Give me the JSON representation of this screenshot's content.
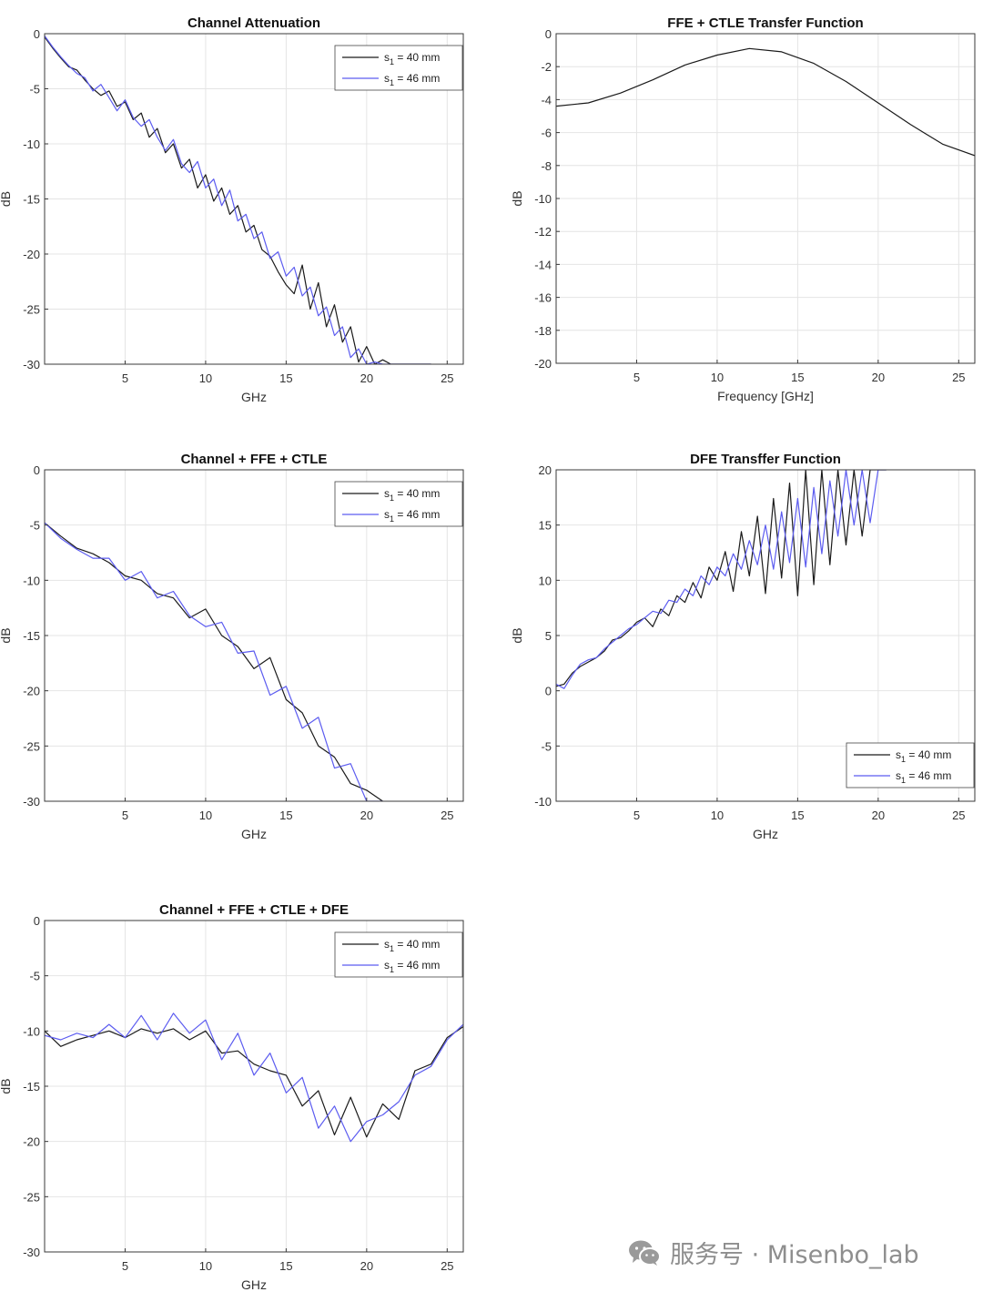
{
  "colors": {
    "s1_40": "#1a1a1a",
    "s1_46": "#5c5cf0",
    "grid": "#e4e4e4",
    "axis": "#3a3a3a"
  },
  "watermark": {
    "icon": "wechat-icon",
    "text": "服务号 · Misenbo_lab"
  },
  "chart_data": [
    {
      "id": "channel-attenuation",
      "type": "line",
      "title": "Channel Attenuation",
      "xlabel": "GHz",
      "ylabel": "dB",
      "xlim": [
        0,
        26
      ],
      "ylim": [
        -30,
        0
      ],
      "xticks": [
        5,
        10,
        15,
        20,
        25
      ],
      "yticks": [
        0,
        -5,
        -10,
        -15,
        -20,
        -25,
        -30
      ],
      "grid": true,
      "legend": "top-right",
      "series": [
        {
          "name": "s1 = 40 mm",
          "x": [
            0.0,
            0.5,
            1.0,
            1.5,
            2.0,
            2.5,
            3.0,
            3.5,
            4.0,
            4.5,
            5.0,
            5.5,
            6.0,
            6.5,
            7.0,
            7.5,
            8.0,
            8.5,
            9.0,
            9.5,
            10.0,
            10.5,
            11.0,
            11.5,
            12.0,
            12.5,
            13.0,
            13.5,
            14.0,
            14.5,
            15.0,
            15.5,
            16.0,
            16.5,
            17.0,
            17.5,
            18.0,
            18.5,
            19.0,
            19.5,
            20.0,
            20.5,
            21.0,
            21.5,
            22.0,
            22.5,
            23.0,
            23.5,
            24.0
          ],
          "y": [
            -0.3,
            -1.3,
            -2.2,
            -3.0,
            -3.3,
            -4.2,
            -5.0,
            -5.6,
            -5.2,
            -6.6,
            -6.2,
            -7.8,
            -7.2,
            -9.4,
            -8.6,
            -10.8,
            -10.0,
            -12.2,
            -11.4,
            -14.0,
            -12.8,
            -15.2,
            -14.0,
            -16.4,
            -15.6,
            -18.0,
            -17.4,
            -19.6,
            -20.2,
            -21.6,
            -22.8,
            -23.6,
            -21.0,
            -25.0,
            -22.6,
            -26.6,
            -24.6,
            -28.0,
            -26.6,
            -29.8,
            -28.4,
            -30.0,
            -29.6,
            -30.0,
            -30.0,
            -30.0,
            -30.0,
            -30.0,
            -30.0
          ]
        },
        {
          "name": "s1 = 46 mm",
          "x": [
            0.0,
            0.5,
            1.0,
            1.5,
            2.0,
            2.5,
            3.0,
            3.5,
            4.0,
            4.5,
            5.0,
            5.5,
            6.0,
            6.5,
            7.0,
            7.5,
            8.0,
            8.5,
            9.0,
            9.5,
            10.0,
            10.5,
            11.0,
            11.5,
            12.0,
            12.5,
            13.0,
            13.5,
            14.0,
            14.5,
            15.0,
            15.5,
            16.0,
            16.5,
            17.0,
            17.5,
            18.0,
            18.5,
            19.0,
            19.5,
            20.0,
            20.5,
            21.0,
            21.5,
            22.0,
            22.5,
            23.0,
            23.5,
            24.0
          ],
          "y": [
            -0.2,
            -1.2,
            -2.1,
            -2.9,
            -3.6,
            -4.0,
            -5.2,
            -4.6,
            -5.8,
            -7.0,
            -6.0,
            -7.6,
            -8.4,
            -7.8,
            -9.4,
            -10.6,
            -9.6,
            -11.8,
            -12.6,
            -11.6,
            -14.0,
            -13.2,
            -15.6,
            -14.2,
            -17.0,
            -16.4,
            -18.6,
            -18.0,
            -20.4,
            -19.8,
            -22.0,
            -21.2,
            -23.8,
            -23.0,
            -25.6,
            -24.8,
            -27.4,
            -26.6,
            -29.4,
            -28.6,
            -30.0,
            -29.8,
            -30.0,
            -30.0,
            -30.0,
            -30.0,
            -30.0,
            -30.0,
            -30.0
          ]
        }
      ]
    },
    {
      "id": "ffe-ctle",
      "type": "line",
      "title": "FFE + CTLE Transfer Function",
      "xlabel": "Frequency [GHz]",
      "ylabel": "dB",
      "xlim": [
        0,
        26
      ],
      "ylim": [
        -20,
        0
      ],
      "xticks": [
        5,
        10,
        15,
        20,
        25
      ],
      "yticks": [
        0,
        -2,
        -4,
        -6,
        -8,
        -10,
        -12,
        -14,
        -16,
        -18,
        -20
      ],
      "grid": true,
      "series": [
        {
          "name": "",
          "x": [
            0,
            2,
            4,
            6,
            8,
            10,
            12,
            14,
            16,
            18,
            20,
            22,
            24,
            26
          ],
          "y": [
            -4.4,
            -4.2,
            -3.6,
            -2.8,
            -1.9,
            -1.3,
            -0.9,
            -1.1,
            -1.8,
            -2.9,
            -4.2,
            -5.5,
            -6.7,
            -7.4
          ]
        }
      ]
    },
    {
      "id": "channel-ffe-ctle",
      "type": "line",
      "title": "Channel + FFE + CTLE",
      "xlabel": "GHz",
      "ylabel": "dB",
      "xlim": [
        0,
        26
      ],
      "ylim": [
        -30,
        0
      ],
      "xticks": [
        5,
        10,
        15,
        20,
        25
      ],
      "yticks": [
        0,
        -5,
        -10,
        -15,
        -20,
        -25,
        -30
      ],
      "grid": true,
      "legend": "top-right",
      "series": [
        {
          "name": "s1 = 40 mm",
          "x": [
            0.0,
            1.0,
            2.0,
            3.0,
            4.0,
            5.0,
            6.0,
            7.0,
            8.0,
            9.0,
            10.0,
            11.0,
            12.0,
            13.0,
            14.0,
            15.0,
            16.0,
            17.0,
            18.0,
            19.0,
            20.0,
            21.0
          ],
          "y": [
            -4.8,
            -6.0,
            -7.1,
            -7.6,
            -8.4,
            -9.6,
            -10.0,
            -11.2,
            -11.6,
            -13.4,
            -12.6,
            -15.0,
            -16.0,
            -18.0,
            -17.0,
            -20.8,
            -22.0,
            -25.0,
            -26.0,
            -28.4,
            -29.0,
            -30.0
          ]
        },
        {
          "name": "s1 = 46 mm",
          "x": [
            0.0,
            1.0,
            2.0,
            3.0,
            4.0,
            5.0,
            6.0,
            7.0,
            8.0,
            9.0,
            10.0,
            11.0,
            12.0,
            13.0,
            14.0,
            15.0,
            16.0,
            17.0,
            18.0,
            19.0,
            20.0,
            21.0
          ],
          "y": [
            -4.8,
            -6.2,
            -7.2,
            -8.0,
            -8.0,
            -10.0,
            -9.2,
            -11.6,
            -11.0,
            -13.2,
            -14.2,
            -13.8,
            -16.6,
            -16.4,
            -20.4,
            -19.6,
            -23.4,
            -22.4,
            -27.0,
            -26.6,
            -30.0,
            -30.0
          ]
        }
      ]
    },
    {
      "id": "dfe",
      "type": "line",
      "title": "DFE Transffer Function",
      "xlabel": "GHz",
      "ylabel": "dB",
      "xlim": [
        0,
        26
      ],
      "ylim": [
        -10,
        20
      ],
      "xticks": [
        5,
        10,
        15,
        20,
        25
      ],
      "yticks": [
        20,
        15,
        10,
        5,
        0,
        -5,
        -10
      ],
      "grid": true,
      "legend": "bottom-right",
      "series": [
        {
          "name": "s1 = 40 mm",
          "x": [
            0.0,
            0.5,
            1.0,
            1.5,
            2.0,
            2.5,
            3.0,
            3.5,
            4.0,
            4.5,
            5.0,
            5.5,
            6.0,
            6.5,
            7.0,
            7.5,
            8.0,
            8.5,
            9.0,
            9.5,
            10.0,
            10.5,
            11.0,
            11.5,
            12.0,
            12.5,
            13.0,
            13.5,
            14.0,
            14.5,
            15.0,
            15.5,
            16.0,
            16.5,
            17.0,
            17.5,
            18.0,
            18.5,
            19.0,
            19.5,
            20.0,
            20.5
          ],
          "y": [
            0.4,
            0.6,
            1.6,
            2.2,
            2.6,
            3.0,
            3.6,
            4.6,
            4.8,
            5.4,
            6.2,
            6.6,
            5.8,
            7.4,
            6.8,
            8.6,
            8.0,
            9.8,
            8.4,
            11.2,
            10.0,
            12.6,
            9.0,
            14.4,
            10.4,
            15.8,
            8.8,
            17.4,
            10.2,
            18.8,
            8.6,
            20.0,
            9.6,
            20.0,
            11.4,
            20.0,
            13.2,
            20.0,
            14.0,
            20.0,
            20.0,
            20.0
          ]
        },
        {
          "name": "s1 = 46 mm",
          "x": [
            0.0,
            0.5,
            1.0,
            1.5,
            2.0,
            2.5,
            3.0,
            3.5,
            4.0,
            4.5,
            5.0,
            5.5,
            6.0,
            6.5,
            7.0,
            7.5,
            8.0,
            8.5,
            9.0,
            9.5,
            10.0,
            10.5,
            11.0,
            11.5,
            12.0,
            12.5,
            13.0,
            13.5,
            14.0,
            14.5,
            15.0,
            15.5,
            16.0,
            16.5,
            17.0,
            17.5,
            18.0,
            18.5,
            19.0,
            19.5,
            20.0,
            20.5
          ],
          "y": [
            0.6,
            0.2,
            1.4,
            2.4,
            2.8,
            3.0,
            3.8,
            4.4,
            5.0,
            5.6,
            6.0,
            6.6,
            7.2,
            7.0,
            8.2,
            8.0,
            9.2,
            8.6,
            10.4,
            9.6,
            11.2,
            10.4,
            12.4,
            11.0,
            13.6,
            11.4,
            15.0,
            11.0,
            16.2,
            11.6,
            17.4,
            11.2,
            18.4,
            12.4,
            19.0,
            14.0,
            20.0,
            15.0,
            20.0,
            15.2,
            20.0,
            20.0
          ]
        }
      ]
    },
    {
      "id": "channel-ffe-ctle-dfe",
      "type": "line",
      "title": "Channel + FFE + CTLE + DFE",
      "xlabel": "GHz",
      "ylabel": "dB",
      "xlim": [
        0,
        26
      ],
      "ylim": [
        -30,
        0
      ],
      "xticks": [
        5,
        10,
        15,
        20,
        25
      ],
      "yticks": [
        0,
        -5,
        -10,
        -15,
        -20,
        -25,
        -30
      ],
      "grid": true,
      "legend": "top-right",
      "series": [
        {
          "name": "s1 = 40 mm",
          "x": [
            0,
            1,
            2,
            3,
            4,
            5,
            6,
            7,
            8,
            9,
            10,
            11,
            12,
            13,
            14,
            15,
            16,
            17,
            18,
            19,
            20,
            21,
            22,
            23,
            24,
            25,
            26
          ],
          "y": [
            -10.0,
            -11.4,
            -10.8,
            -10.4,
            -10.0,
            -10.6,
            -9.8,
            -10.2,
            -9.8,
            -10.8,
            -10.0,
            -12.0,
            -11.8,
            -13.0,
            -13.6,
            -14.0,
            -16.8,
            -15.4,
            -19.4,
            -16.0,
            -19.6,
            -16.6,
            -18.0,
            -13.6,
            -13.0,
            -10.6,
            -9.6
          ]
        },
        {
          "name": "s1 = 46 mm",
          "x": [
            0,
            1,
            2,
            3,
            4,
            5,
            6,
            7,
            8,
            9,
            10,
            11,
            12,
            13,
            14,
            15,
            16,
            17,
            18,
            19,
            20,
            21,
            22,
            23,
            24,
            25,
            26
          ],
          "y": [
            -10.4,
            -10.8,
            -10.2,
            -10.6,
            -9.4,
            -10.6,
            -8.6,
            -10.8,
            -8.4,
            -10.2,
            -9.0,
            -12.6,
            -10.2,
            -14.0,
            -12.0,
            -15.6,
            -14.2,
            -18.8,
            -16.8,
            -20.0,
            -18.2,
            -17.6,
            -16.4,
            -14.0,
            -13.2,
            -10.8,
            -9.4
          ]
        }
      ]
    }
  ]
}
